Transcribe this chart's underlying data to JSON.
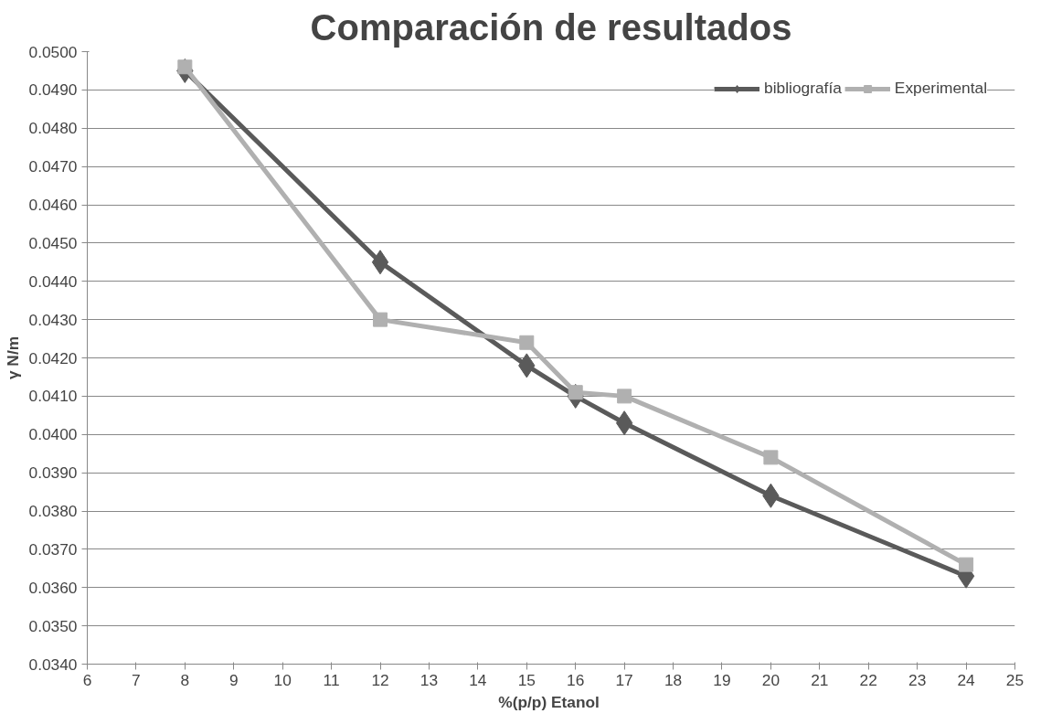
{
  "chart_data": {
    "type": "line",
    "title": "Comparación de resultados",
    "xlabel": "%(p/p)  Etanol",
    "ylabel": "γ N/m",
    "x": [
      8,
      12,
      15,
      16,
      17,
      20,
      24
    ],
    "series": [
      {
        "name": "bibliografía",
        "color": "#5a5a5a",
        "values": [
          0.0495,
          0.0445,
          0.0418,
          0.041,
          0.0403,
          0.0384,
          0.0363
        ],
        "marker": "diamond"
      },
      {
        "name": "Experimental",
        "color": "#b0b0b0",
        "values": [
          0.0496,
          0.043,
          0.0424,
          0.0411,
          0.041,
          0.0394,
          0.0366
        ],
        "marker": "square"
      }
    ],
    "xlim": [
      6,
      25
    ],
    "xticks": [
      6,
      7,
      8,
      9,
      10,
      11,
      12,
      13,
      14,
      15,
      16,
      17,
      18,
      19,
      20,
      21,
      22,
      23,
      24,
      25
    ],
    "ylim": [
      0.034,
      0.05
    ],
    "yticks": [
      {
        "value": 0.034,
        "label": "0.0340"
      },
      {
        "value": 0.035,
        "label": "0.0350"
      },
      {
        "value": 0.036,
        "label": "0.0360"
      },
      {
        "value": 0.037,
        "label": "0.0370"
      },
      {
        "value": 0.038,
        "label": "0.0380"
      },
      {
        "value": 0.039,
        "label": "0.0390"
      },
      {
        "value": 0.04,
        "label": "0.0400"
      },
      {
        "value": 0.041,
        "label": "0.0410"
      },
      {
        "value": 0.042,
        "label": "0.0420"
      },
      {
        "value": 0.043,
        "label": "0.0430"
      },
      {
        "value": 0.044,
        "label": "0.0440"
      },
      {
        "value": 0.045,
        "label": "0.0450"
      },
      {
        "value": 0.046,
        "label": "0.0460"
      },
      {
        "value": 0.047,
        "label": "0.0470"
      },
      {
        "value": 0.048,
        "label": "0.0480"
      },
      {
        "value": 0.049,
        "label": "0.0490"
      },
      {
        "value": 0.05,
        "label": "0.0500"
      }
    ],
    "grid": "y",
    "legend": "top right",
    "line_style": "solid"
  }
}
